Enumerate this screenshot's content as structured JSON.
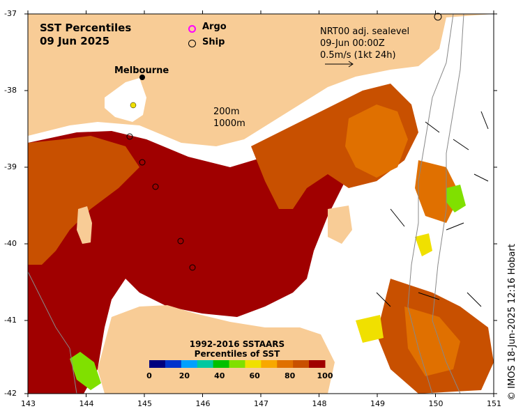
{
  "title": {
    "line1": "SST Percentiles",
    "line2": "09 Jun 2025"
  },
  "legend": [
    {
      "label": "Argo",
      "marker": "ring",
      "color": "#ff00ff"
    },
    {
      "label": "Ship",
      "marker": "ring",
      "color": "#000000"
    }
  ],
  "velocity": {
    "line1": "NRT00 adj. sealevel",
    "line2": "09-Jun 00:00Z",
    "line3": "0.5m/s (1kt 24h)"
  },
  "depth_contours": {
    "line1": "200m",
    "line2": "1000m"
  },
  "place": {
    "name": "Melbourne"
  },
  "credit": "© IMOS 18-Jun-2025 12:16 Hobart",
  "axes": {
    "x_ticks": [
      "143",
      "144",
      "145",
      "146",
      "147",
      "148",
      "149",
      "150",
      "151"
    ],
    "y_ticks": [
      "-37",
      "-38",
      "-39",
      "-40",
      "-41",
      "-42"
    ]
  },
  "colorbar": {
    "title_line1": "1992-2016 SSTAARS",
    "title_line2": "Percentiles of SST",
    "ticks": [
      "0",
      "20",
      "40",
      "60",
      "80",
      "100"
    ],
    "colors": [
      "#00007f",
      "#0033cc",
      "#00a0ff",
      "#00c8a0",
      "#00c000",
      "#80e000",
      "#f0e000",
      "#f8a800",
      "#e07000",
      "#c85000",
      "#a00000"
    ]
  },
  "colors": {
    "land": "#f8cc96",
    "ocean_nodata": "#ffffff",
    "sst_extreme": "#a00000",
    "sst_high": "#c85000",
    "sst_mid": "#e07000",
    "sst_warm": "#f8a800"
  }
}
